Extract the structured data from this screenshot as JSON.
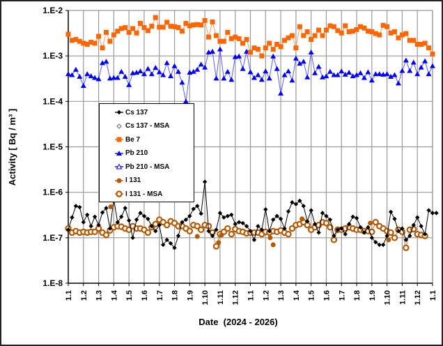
{
  "chart_data": {
    "type": "scatter",
    "title": "",
    "xlabel": "Date  (2024 - 2026)",
    "ylabel": "Activity [ Bq / m³ ]",
    "yscale": "log",
    "ylim": [
      1e-08,
      0.01
    ],
    "ytick_labels": [
      "1.E-2",
      "1.E-3",
      "1.E-4",
      "1.E-5",
      "1.E-6",
      "1.E-7",
      "1.E-8"
    ],
    "ytick_values": [
      0.01,
      0.001,
      0.0001,
      1e-05,
      1e-06,
      1e-07,
      1e-08
    ],
    "x_unit": "months since 1.1.2024",
    "xlim": [
      0,
      24
    ],
    "xtick_labels": [
      "1.1",
      "1.2",
      "1.3",
      "1.4",
      "1.5",
      "1.6",
      "1.7",
      "1.8",
      "1.9",
      "1.10",
      "1.11",
      "1.12",
      "1.1",
      "1.2",
      "1.3",
      "1.4",
      "1.5",
      "1.6",
      "1.7",
      "1.8",
      "1.9",
      "1.10",
      "1.11",
      "1.12",
      "1.1"
    ],
    "grid": true,
    "legend_position": "center-left",
    "x_step": 0.25,
    "series": [
      {
        "name": "Cs 137",
        "color": "#000000",
        "marker": "diamond",
        "line": true,
        "values": [
          1.5e-07,
          2.8e-07,
          5e-07,
          4.7e-07,
          2.2e-07,
          3.2e-07,
          1.8e-07,
          2.9e-07,
          1.9e-07,
          3.6e-07,
          4.5e-07,
          1.6e-07,
          7e-07,
          2.2e-07,
          2.9e-07,
          4.5e-07,
          2.4e-07,
          1e-07,
          2.5e-07,
          3.5e-07,
          3e-07,
          2.6e-07,
          1.8e-07,
          1.4e-07,
          1.9e-07,
          7e-08,
          9e-08,
          7.5e-08,
          6e-08,
          1.1e-07,
          2.2e-07,
          2.5e-07,
          3e-07,
          4.3e-07,
          5e-07,
          3.4e-07,
          1.7e-06,
          1.4e-07,
          1.1e-07,
          1.5e-07,
          3.5e-07,
          2.8e-07,
          3e-07,
          3.2e-07,
          2e-07,
          2.2e-07,
          2.1e-07,
          1.8e-07,
          1.4e-07,
          9e-08,
          1.8e-07,
          1.5e-07,
          4.2e-07,
          1.4e-07,
          2.5e-07,
          3e-07,
          2.6e-07,
          1.6e-07,
          3.8e-07,
          6e-07,
          5.5e-07,
          6.5e-07,
          5e-07,
          2.3e-07,
          4e-07,
          2e-07,
          1.3e-07,
          3.5e-07,
          3e-07,
          2.5e-07,
          1.1e-07,
          1.5e-07,
          1.6e-07,
          1.2e-07,
          2e-07,
          2.9e-07,
          2.7e-07,
          1.7e-07,
          1.3e-07,
          1.7e-07,
          1e-07,
          8e-08,
          7e-08,
          7e-08,
          1.1e-07,
          3.7e-07,
          2.6e-07,
          1.4e-07,
          1.6e-07,
          9e-08,
          1.1e-07,
          1.9e-07,
          2.8e-07,
          1.8e-07,
          1.2e-07,
          4e-07,
          3.5e-07,
          3.5e-07
        ]
      },
      {
        "name": "Cs 137 - MSA",
        "color": "#000000",
        "marker": "open-diamond",
        "line": false,
        "values": []
      },
      {
        "name": "Be 7",
        "color": "#ff6600",
        "marker": "square",
        "line": true,
        "values": [
          0.003,
          0.0022,
          0.0023,
          0.0021,
          0.0019,
          0.0018,
          0.002,
          0.0019,
          0.0027,
          0.0015,
          0.0033,
          0.0021,
          0.0029,
          0.0035,
          0.004,
          0.0042,
          0.0033,
          0.004,
          0.0032,
          0.0052,
          0.0042,
          0.0036,
          0.0045,
          0.007,
          0.0043,
          0.0043,
          0.0055,
          0.0045,
          0.0044,
          0.0042,
          0.0035,
          0.0052,
          0.0046,
          0.0048,
          0.0049,
          0.0048,
          0.006,
          0.0026,
          0.0056,
          0.0028,
          0.0021,
          0.0021,
          0.0033,
          0.0024,
          0.0026,
          0.0024,
          0.0019,
          0.0023,
          0.0012,
          0.0015,
          0.0014,
          0.001,
          0.0015,
          0.0019,
          0.0014,
          0.0018,
          0.0016,
          0.0022,
          0.0025,
          0.0028,
          0.0015,
          0.0044,
          0.0028,
          0.0034,
          0.0023,
          0.0028,
          0.0037,
          0.0028,
          0.0037,
          0.0046,
          0.0044,
          0.0036,
          0.0032,
          0.0046,
          0.0034,
          0.0035,
          0.0038,
          0.0044,
          0.0041,
          0.0035,
          0.0034,
          0.0031,
          0.0029,
          0.0047,
          0.0044,
          0.0032,
          0.0034,
          0.0025,
          0.0029,
          0.0031,
          0.0022,
          0.0022,
          0.0018,
          0.0018,
          0.0019,
          0.0015,
          0.0011
        ]
      },
      {
        "name": "Pb 210",
        "color": "#0000ff",
        "marker": "triangle",
        "line": true,
        "values": [
          0.0004,
          0.00038,
          0.0005,
          0.00035,
          0.00022,
          0.0004,
          0.00036,
          0.00033,
          0.00031,
          0.0007,
          0.00075,
          0.00032,
          0.00033,
          0.00033,
          0.00045,
          0.00035,
          0.00023,
          0.00042,
          0.00043,
          0.00046,
          0.0004,
          0.00052,
          0.0004,
          0.00055,
          0.00044,
          0.00038,
          0.0007,
          0.00036,
          0.0006,
          0.00045,
          0.00026,
          0.0001,
          0.00043,
          0.00045,
          0.0005,
          0.00065,
          0.00056,
          0.0012,
          0.00125,
          0.00032,
          0.0014,
          0.00032,
          0.00045,
          0.0003,
          0.00095,
          0.00098,
          0.00052,
          0.00125,
          0.00044,
          0.00033,
          0.00038,
          0.0003,
          0.00046,
          0.00032,
          0.00098,
          0.00052,
          0.00015,
          0.00038,
          0.00046,
          0.00029,
          0.00088,
          0.00068,
          0.00075,
          0.00034,
          0.0012,
          0.00042,
          0.00058,
          0.00034,
          0.00036,
          0.00045,
          0.00038,
          0.00038,
          0.00046,
          0.00039,
          0.00043,
          0.00036,
          0.00038,
          0.00042,
          0.00033,
          0.00044,
          0.00029,
          0.0004,
          0.0004,
          0.00039,
          0.0004,
          0.00035,
          0.00038,
          0.00025,
          0.00047,
          0.0008,
          0.00047,
          0.00072,
          0.0004,
          0.00056,
          0.00077,
          0.0004,
          0.0006
        ]
      },
      {
        "name": "Pb 210 - MSA",
        "color": "#0000ff",
        "marker": "open-triangle",
        "line": false,
        "values": []
      },
      {
        "name": "I 131",
        "color": "#b35900",
        "marker": "circle",
        "line": false,
        "points": [
          [
            2.8,
            4.8e-07
          ],
          [
            8.5,
            1.07e-07
          ],
          [
            9.9,
            7.8e-08
          ],
          [
            10.1,
            1.15e-07
          ],
          [
            13.3,
            1e-07
          ],
          [
            13.5,
            7e-08
          ],
          [
            15.4,
            2.6e-07
          ],
          [
            19.9,
            2.1e-07
          ],
          [
            21.1,
            9e-08
          ]
        ]
      },
      {
        "name": "I 131 - MSA",
        "color": "#b35900",
        "marker": "open-circle",
        "line": true,
        "values": [
          1.6e-07,
          1.3e-07,
          1.4e-07,
          1.3e-07,
          1.35e-07,
          1.3e-07,
          1.35e-07,
          1.35e-07,
          1.6e-07,
          1.3e-07,
          1.15e-07,
          1.45e-07,
          1.7e-07,
          1.8e-07,
          1.75e-07,
          1.6e-07,
          1.5e-07,
          1.8e-07,
          1.6e-07,
          1.6e-07,
          1.5e-07,
          1.3e-07,
          1.7e-07,
          2e-07,
          2.5e-07,
          2.2e-07,
          1.9e-07,
          2.3e-07,
          2.1e-07,
          1.8e-07,
          1.8e-07,
          1.6e-07,
          1.4e-07,
          1.9e-07,
          1.8e-07,
          1.5e-07,
          1.9e-07,
          1.8e-07,
          1.3e-07,
          6.5e-08,
          1.2e-07,
          1.35e-07,
          1.6e-07,
          1.2e-07,
          1.55e-07,
          1.4e-07,
          1.35e-07,
          1.25e-07,
          1.3e-07,
          1.3e-07,
          1.3e-07,
          1.2e-07,
          1.35e-07,
          1.3e-07,
          1.4e-07,
          1.35e-07,
          1.45e-07,
          1.3e-07,
          1.2e-07,
          1.6e-07,
          1.9e-07,
          2e-07,
          2.2e-07,
          1.9e-07,
          1.5e-07,
          1.7e-07,
          1.9e-07,
          2.2e-07,
          2.1e-07,
          1.7e-07,
          9e-08,
          1.5e-07,
          1.5e-07,
          1.6e-07,
          1.7e-07,
          1.6e-07,
          1.5e-07,
          1.5e-07,
          1.4e-07,
          1.4e-07,
          1.35e-07,
          2.2e-07,
          1.8e-07,
          1.6e-07,
          1.4e-07,
          1.3e-07,
          1e-07,
          1.5e-07,
          1.35e-07,
          6e-08,
          1.5e-07,
          1.55e-07,
          1.2e-07,
          1.15e-07,
          1.1e-07
        ]
      }
    ]
  }
}
